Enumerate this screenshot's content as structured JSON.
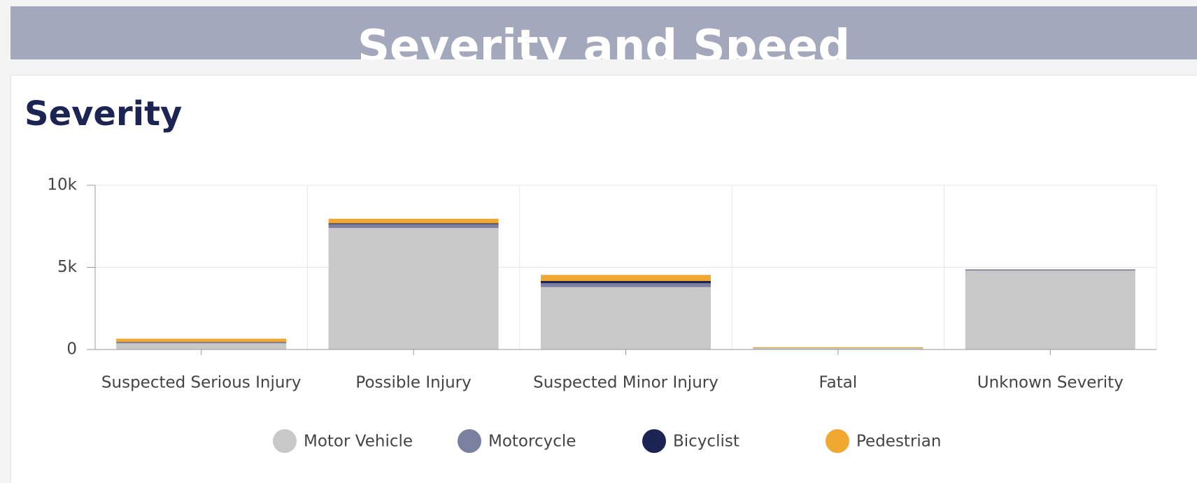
{
  "header": {
    "title": "Severity and Speed"
  },
  "chart_data": {
    "type": "stacked_bar",
    "title": "Severity",
    "categories": [
      "Suspected Serious Injury",
      "Possible Injury",
      "Suspected Minor Injury",
      "Fatal",
      "Unknown Severity"
    ],
    "series": [
      {
        "name": "Motor Vehicle",
        "color": "#c8c8c8",
        "values": [
          380,
          7400,
          3800,
          80,
          4800
        ]
      },
      {
        "name": "Motorcycle",
        "color": "#7a81a0",
        "values": [
          60,
          230,
          230,
          10,
          60
        ]
      },
      {
        "name": "Bicyclist",
        "color": "#1b2452",
        "values": [
          20,
          50,
          140,
          5,
          10
        ]
      },
      {
        "name": "Pedestrian",
        "color": "#f0a830",
        "values": [
          200,
          280,
          370,
          45,
          10
        ]
      }
    ],
    "ylim": [
      0,
      10000
    ],
    "yticks": [
      0,
      {
        "value": 5000,
        "label": "5k"
      },
      {
        "value": 10000,
        "label": "10k"
      }
    ],
    "grid": true,
    "legend": "bottom"
  }
}
